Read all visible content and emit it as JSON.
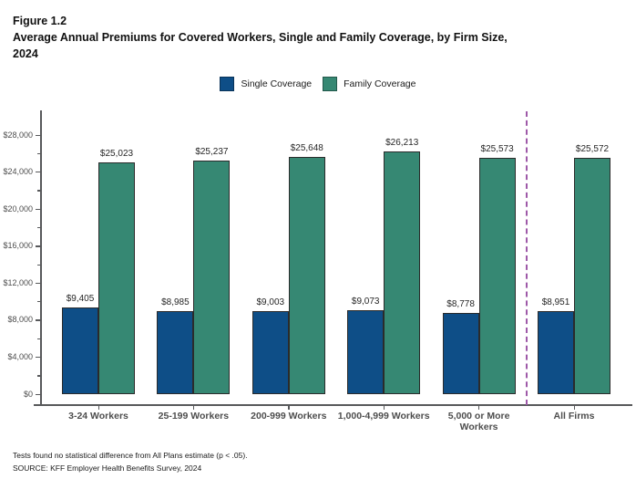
{
  "header": {
    "figure_label": "Figure 1.2",
    "title_line1": "Average Annual Premiums for Covered Workers, Single and Family Coverage, by Firm Size,",
    "title_line2": "2024"
  },
  "legend": [
    {
      "label": "Single Coverage",
      "color": "#0e4e87"
    },
    {
      "label": "Family Coverage",
      "color": "#368873"
    }
  ],
  "chart_data": {
    "type": "bar",
    "title": "Average Annual Premiums for Covered Workers, Single and Family Coverage, by Firm Size, 2024",
    "categories": [
      "3-24 Workers",
      "25-199 Workers",
      "200-999 Workers",
      "1,000-4,999 Workers",
      "5,000 or More Workers",
      "All Firms"
    ],
    "series": [
      {
        "name": "Single Coverage",
        "color": "#0e4e87",
        "values": [
          9405,
          8985,
          9003,
          9073,
          8778,
          8951
        ],
        "value_labels": [
          "$9,405",
          "$8,985",
          "$9,003",
          "$9,073",
          "$8,778",
          "$8,951"
        ]
      },
      {
        "name": "Family Coverage",
        "color": "#368873",
        "values": [
          25023,
          25237,
          25648,
          26213,
          25573,
          25572
        ],
        "value_labels": [
          "$25,023",
          "$25,237",
          "$25,648",
          "$26,213",
          "$25,573",
          "$25,572"
        ]
      }
    ],
    "ylim": [
      0,
      28000
    ],
    "y_major_step": 4000,
    "y_minor_step": 2000,
    "y_tick_labels": [
      "$0",
      "$4,000",
      "$8,000",
      "$12,000",
      "$16,000",
      "$20,000",
      "$24,000",
      "$28,000"
    ],
    "grid": "off",
    "legend_position": "top-center",
    "separator_before_category": "All Firms",
    "separator_color": "#9e59a8",
    "axis_color": "#58595b"
  },
  "footer": {
    "note": "Tests found no statistical difference from All Plans estimate (p < .05).",
    "source": "SOURCE: KFF Employer Health Benefits Survey, 2024"
  }
}
